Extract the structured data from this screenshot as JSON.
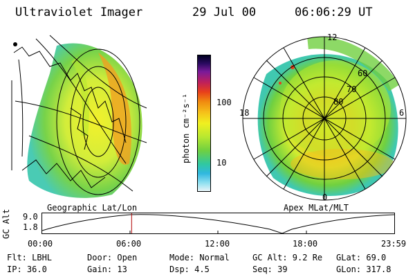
{
  "header": {
    "instrument": "Ultraviolet Imager",
    "date": "29 Jul 00",
    "time": "06:06:29 UT"
  },
  "panels": {
    "left_label": "Geographic Lat/Lon",
    "right_label": "Apex MLat/MLT"
  },
  "colorbar": {
    "unit_label": "photon cm⁻²s⁻¹",
    "ticks": [
      "100",
      "10"
    ],
    "colors": [
      "#000020",
      "#2a0a60",
      "#7a1a9a",
      "#c0205a",
      "#e8401a",
      "#f08a10",
      "#f5c01a",
      "#f0f020",
      "#b8e830",
      "#70d040",
      "#30c8a0",
      "#30b8e0",
      "#90e0f0",
      "#e8f4f8"
    ]
  },
  "polar": {
    "lat_labels": [
      "60",
      "70",
      "80"
    ],
    "mlt_labels": [
      "12",
      "18",
      "6",
      "0"
    ]
  },
  "timeline": {
    "axis_label": "GC Alt",
    "y_ticks": [
      "9.0",
      "1.8"
    ],
    "x_ticks": [
      "00:00",
      "06:00",
      "12:00",
      "18:00",
      "23:59"
    ],
    "current_time_fraction": 0.254
  },
  "info": {
    "row1": {
      "flt": "Flt: LBHL",
      "door": "Door: Open",
      "mode": "Mode: Normal",
      "gcalt": "GC Alt: 9.2 Re",
      "glat": "GLat:  69.0"
    },
    "row2": {
      "ip": "IP: 36.0",
      "gain": "Gain: 13",
      "dsp": "Dsp:    4.5",
      "seq": "Seq: 39",
      "glon": "GLon: 317.8"
    }
  }
}
